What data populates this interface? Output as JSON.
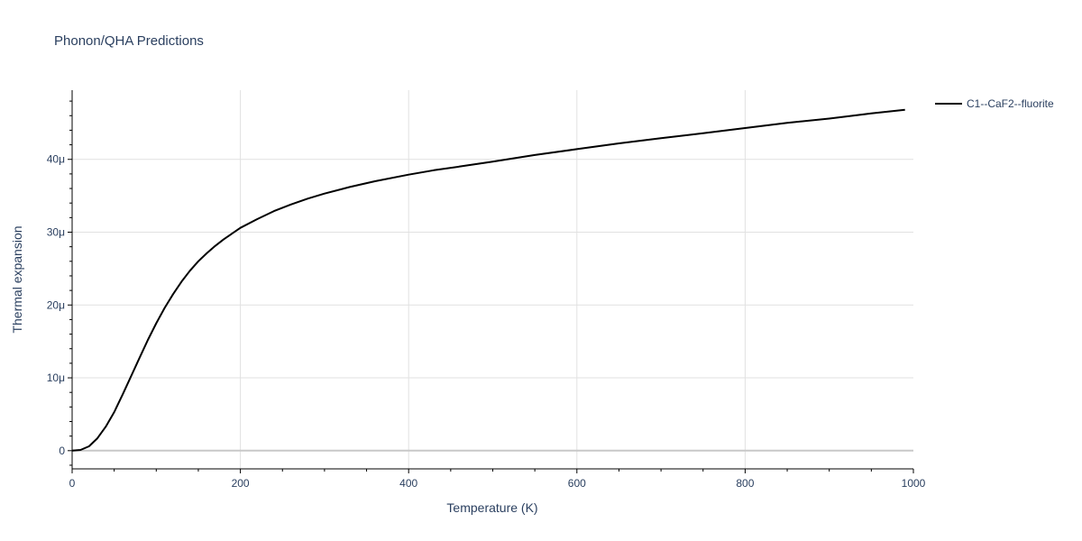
{
  "chart_data": {
    "type": "line",
    "title": "Phonon/QHA Predictions",
    "xlabel": "Temperature (K)",
    "ylabel": "Thermal expansion",
    "xlim": [
      0,
      1000
    ],
    "ylim": [
      -2.5e-06,
      4.95e-05
    ],
    "x_ticks": [
      0,
      200,
      400,
      600,
      800,
      1000
    ],
    "x_tick_labels": [
      "0",
      "200",
      "400",
      "600",
      "800",
      "1000"
    ],
    "y_ticks": [
      0,
      1e-05,
      2e-05,
      3e-05,
      4e-05
    ],
    "y_tick_labels": [
      "0",
      "10μ",
      "20μ",
      "30μ",
      "40μ"
    ],
    "grid": true,
    "legend_position": "top-right",
    "series": [
      {
        "name": "C1--CaF2--fluorite",
        "color": "#000000",
        "x": [
          0,
          10,
          20,
          30,
          40,
          50,
          60,
          70,
          80,
          90,
          100,
          110,
          120,
          130,
          140,
          150,
          160,
          170,
          180,
          190,
          200,
          220,
          240,
          260,
          280,
          300,
          330,
          360,
          400,
          430,
          460,
          500,
          550,
          600,
          650,
          700,
          750,
          800,
          850,
          900,
          950,
          990
        ],
        "y": [
          0,
          1e-07,
          6e-07,
          1.7e-06,
          3.3e-06,
          5.3e-06,
          7.7e-06,
          1.02e-05,
          1.27e-05,
          1.52e-05,
          1.75e-05,
          1.96e-05,
          2.15e-05,
          2.32e-05,
          2.47e-05,
          2.6e-05,
          2.71e-05,
          2.81e-05,
          2.9e-05,
          2.98e-05,
          3.06e-05,
          3.18e-05,
          3.29e-05,
          3.38e-05,
          3.46e-05,
          3.53e-05,
          3.62e-05,
          3.7e-05,
          3.79e-05,
          3.85e-05,
          3.9e-05,
          3.97e-05,
          4.06e-05,
          4.14e-05,
          4.22e-05,
          4.29e-05,
          4.36e-05,
          4.43e-05,
          4.5e-05,
          4.56e-05,
          4.63e-05,
          4.68e-05
        ]
      }
    ]
  }
}
